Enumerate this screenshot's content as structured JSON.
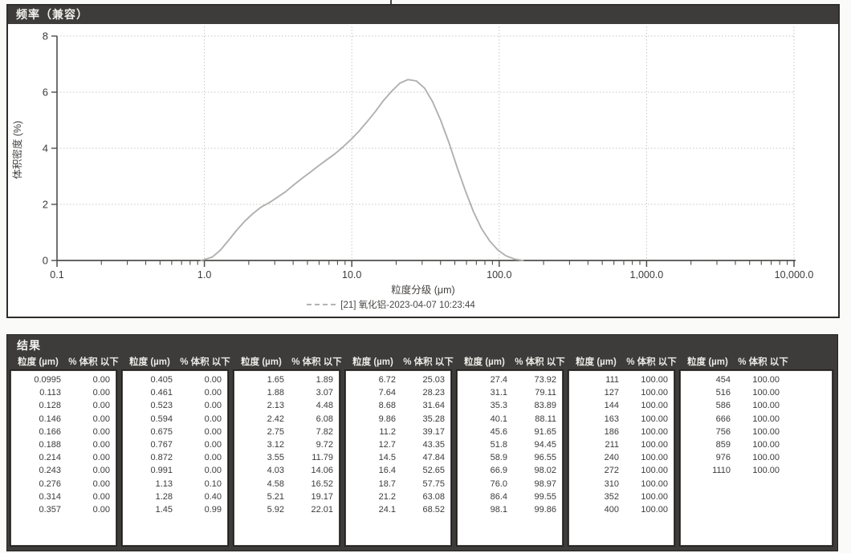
{
  "chart_panel": {
    "title": "频率（兼容）",
    "xlabel": "粒度分级 (μm)",
    "ylabel": "体积密度 (%)",
    "legend": "[21] 氧化铝-2023-04-07 10:23:44",
    "x_tick_labels": [
      "0.1",
      "1.0",
      "10.0",
      "100.0",
      "1,000.0",
      "10,000.0"
    ],
    "y_tick_labels": [
      "0",
      "2",
      "4",
      "6",
      "8"
    ]
  },
  "chart_data": {
    "type": "line",
    "title": "频率（兼容）",
    "xlabel": "粒度分级 (μm)",
    "ylabel": "体积密度 (%)",
    "x_scale": "log",
    "xlim": [
      0.1,
      10000
    ],
    "ylim": [
      0,
      8
    ],
    "y_ticks": [
      0,
      2,
      4,
      6,
      8
    ],
    "x_tick_values": [
      0.1,
      1,
      10,
      100,
      1000,
      10000
    ],
    "grid": "dotted",
    "legend_position": "bottom-center",
    "series": [
      {
        "name": "[21] 氧化铝-2023-04-07 10:23:44",
        "color": "#aeb2ae",
        "x": [
          0.95,
          1.13,
          1.28,
          1.45,
          1.65,
          1.88,
          2.13,
          2.42,
          2.75,
          3.12,
          3.55,
          4.03,
          4.58,
          5.21,
          5.92,
          6.72,
          7.64,
          8.68,
          9.86,
          11.2,
          12.7,
          14.5,
          16.4,
          18.7,
          21.2,
          24.1,
          27.4,
          31.1,
          35.3,
          40.1,
          45.6,
          51.8,
          58.9,
          66.9,
          76.0,
          86.4,
          98.1,
          111,
          127,
          145
        ],
        "y": [
          0,
          0.12,
          0.36,
          0.7,
          1.07,
          1.4,
          1.67,
          1.9,
          2.06,
          2.25,
          2.45,
          2.69,
          2.92,
          3.14,
          3.37,
          3.58,
          3.79,
          4.04,
          4.31,
          4.61,
          4.95,
          5.32,
          5.7,
          6.04,
          6.32,
          6.45,
          6.4,
          6.15,
          5.66,
          5.0,
          4.2,
          3.32,
          2.49,
          1.74,
          1.13,
          0.69,
          0.37,
          0.17,
          0.05,
          0
        ]
      }
    ]
  },
  "results": {
    "title": "结果",
    "col_headers": [
      "粒度 (µm)",
      "% 体积 以下"
    ],
    "groups": [
      {
        "rows": [
          [
            "0.0995",
            "0.00"
          ],
          [
            "0.113",
            "0.00"
          ],
          [
            "0.128",
            "0.00"
          ],
          [
            "0.146",
            "0.00"
          ],
          [
            "0.166",
            "0.00"
          ],
          [
            "0.188",
            "0.00"
          ],
          [
            "0.214",
            "0.00"
          ],
          [
            "0.243",
            "0.00"
          ],
          [
            "0.276",
            "0.00"
          ],
          [
            "0.314",
            "0.00"
          ],
          [
            "0.357",
            "0.00"
          ]
        ]
      },
      {
        "rows": [
          [
            "0.405",
            "0.00"
          ],
          [
            "0.461",
            "0.00"
          ],
          [
            "0.523",
            "0.00"
          ],
          [
            "0.594",
            "0.00"
          ],
          [
            "0.675",
            "0.00"
          ],
          [
            "0.767",
            "0.00"
          ],
          [
            "0.872",
            "0.00"
          ],
          [
            "0.991",
            "0.00"
          ],
          [
            "1.13",
            "0.10"
          ],
          [
            "1.28",
            "0.40"
          ],
          [
            "1.45",
            "0.99"
          ]
        ]
      },
      {
        "rows": [
          [
            "1.65",
            "1.89"
          ],
          [
            "1.88",
            "3.07"
          ],
          [
            "2.13",
            "4.48"
          ],
          [
            "2.42",
            "6.08"
          ],
          [
            "2.75",
            "7.82"
          ],
          [
            "3.12",
            "9.72"
          ],
          [
            "3.55",
            "11.79"
          ],
          [
            "4.03",
            "14.06"
          ],
          [
            "4.58",
            "16.52"
          ],
          [
            "5.21",
            "19.17"
          ],
          [
            "5.92",
            "22.01"
          ]
        ]
      },
      {
        "rows": [
          [
            "6.72",
            "25.03"
          ],
          [
            "7.64",
            "28.23"
          ],
          [
            "8.68",
            "31.64"
          ],
          [
            "9.86",
            "35.28"
          ],
          [
            "11.2",
            "39.17"
          ],
          [
            "12.7",
            "43.35"
          ],
          [
            "14.5",
            "47.84"
          ],
          [
            "16.4",
            "52.65"
          ],
          [
            "18.7",
            "57.75"
          ],
          [
            "21.2",
            "63.08"
          ],
          [
            "24.1",
            "68.52"
          ]
        ]
      },
      {
        "rows": [
          [
            "27.4",
            "73.92"
          ],
          [
            "31.1",
            "79.11"
          ],
          [
            "35.3",
            "83.89"
          ],
          [
            "40.1",
            "88.11"
          ],
          [
            "45.6",
            "91.65"
          ],
          [
            "51.8",
            "94.45"
          ],
          [
            "58.9",
            "96.55"
          ],
          [
            "66.9",
            "98.02"
          ],
          [
            "76.0",
            "98.97"
          ],
          [
            "86.4",
            "99.55"
          ],
          [
            "98.1",
            "99.86"
          ]
        ]
      },
      {
        "rows": [
          [
            "111",
            "100.00"
          ],
          [
            "127",
            "100.00"
          ],
          [
            "144",
            "100.00"
          ],
          [
            "163",
            "100.00"
          ],
          [
            "186",
            "100.00"
          ],
          [
            "211",
            "100.00"
          ],
          [
            "240",
            "100.00"
          ],
          [
            "272",
            "100.00"
          ],
          [
            "310",
            "100.00"
          ],
          [
            "352",
            "100.00"
          ],
          [
            "400",
            "100.00"
          ]
        ]
      },
      {
        "rows": [
          [
            "454",
            "100.00"
          ],
          [
            "516",
            "100.00"
          ],
          [
            "586",
            "100.00"
          ],
          [
            "666",
            "100.00"
          ],
          [
            "756",
            "100.00"
          ],
          [
            "859",
            "100.00"
          ],
          [
            "976",
            "100.00"
          ],
          [
            "1110",
            "100.00"
          ]
        ]
      }
    ]
  },
  "colors": {
    "header_bar": "#3e3c3a",
    "curve": "#aeb2ae",
    "grid": "#c6c6c2",
    "axis": "#504e4b"
  }
}
